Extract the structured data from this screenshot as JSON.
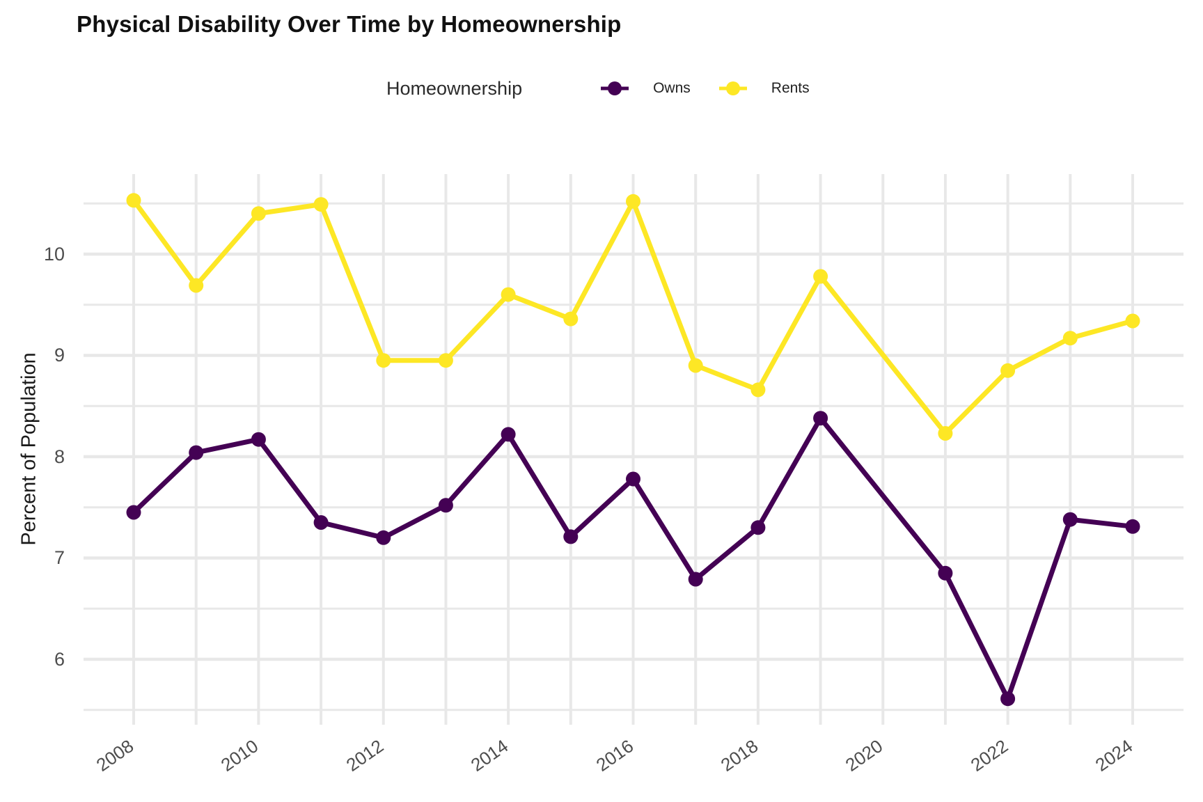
{
  "title": "Physical Disability Over Time by Homeownership",
  "legend": {
    "title": "Homeownership",
    "items": [
      {
        "label": "Owns",
        "color": "#440154"
      },
      {
        "label": "Rents",
        "color": "#FDE725"
      }
    ]
  },
  "y_axis": {
    "title": "Percent of Population",
    "ticks": [
      10,
      9,
      8,
      7,
      6
    ]
  },
  "x_axis": {
    "ticks": [
      2008,
      2010,
      2012,
      2014,
      2016,
      2018,
      2020,
      2022,
      2024
    ]
  },
  "colors": {
    "background": "#ffffff",
    "grid": "#E8E8E8",
    "tick_text": "#4d4d4d",
    "axis_title_text": "#1a1a1a",
    "title_text": "#111111",
    "owns": "#440154",
    "rents": "#FDE725"
  },
  "chart_data": {
    "type": "line",
    "title": "Physical Disability Over Time by Homeownership",
    "xlabel": "",
    "ylabel": "Percent of Population",
    "legend_title": "Homeownership",
    "legend_position": "top-center",
    "grid": "light gray major gridlines at integers and yearly x positions, minor gridlines at 0.5 steps, no axis lines",
    "x_ticks": [
      2008,
      2010,
      2012,
      2014,
      2016,
      2018,
      2020,
      2022,
      2024
    ],
    "y_ticks": [
      6,
      7,
      8,
      9,
      10
    ],
    "xlim": [
      2007.2,
      2024.8
    ],
    "ylim": [
      5.36,
      10.79
    ],
    "missing_years": [
      2020
    ],
    "marker": "filled circle on every observed year, straight line across 2020 gap",
    "series": [
      {
        "name": "Owns",
        "color": "#440154",
        "points": [
          [
            2008,
            7.45
          ],
          [
            2009,
            8.04
          ],
          [
            2010,
            8.17
          ],
          [
            2011,
            7.35
          ],
          [
            2012,
            7.2
          ],
          [
            2013,
            7.52
          ],
          [
            2014,
            8.22
          ],
          [
            2015,
            7.21
          ],
          [
            2016,
            7.78
          ],
          [
            2017,
            6.79
          ],
          [
            2018,
            7.3
          ],
          [
            2019,
            8.38
          ],
          [
            2021,
            6.85
          ],
          [
            2022,
            5.61
          ],
          [
            2023,
            7.38
          ],
          [
            2024,
            7.31
          ]
        ]
      },
      {
        "name": "Rents",
        "color": "#FDE725",
        "points": [
          [
            2008,
            10.53
          ],
          [
            2009,
            9.69
          ],
          [
            2010,
            10.4
          ],
          [
            2011,
            10.49
          ],
          [
            2012,
            8.95
          ],
          [
            2013,
            8.95
          ],
          [
            2014,
            9.6
          ],
          [
            2015,
            9.36
          ],
          [
            2016,
            10.52
          ],
          [
            2017,
            8.9
          ],
          [
            2018,
            8.66
          ],
          [
            2019,
            9.78
          ],
          [
            2021,
            8.23
          ],
          [
            2022,
            8.85
          ],
          [
            2023,
            9.17
          ],
          [
            2024,
            9.34
          ]
        ]
      }
    ]
  }
}
